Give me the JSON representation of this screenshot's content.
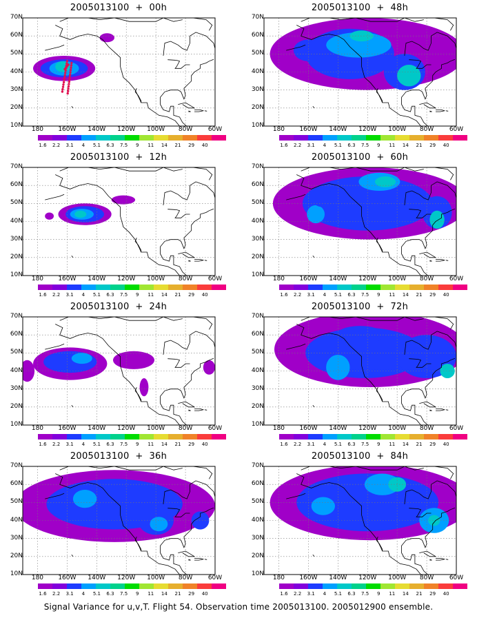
{
  "panels": [
    {
      "id": "p00",
      "title": "2005013100  +  00h"
    },
    {
      "id": "p48",
      "title": "2005013100  +  48h"
    },
    {
      "id": "p12",
      "title": "2005013100  +  12h"
    },
    {
      "id": "p60",
      "title": "2005013100  +  60h"
    },
    {
      "id": "p24",
      "title": "2005013100  +  24h"
    },
    {
      "id": "p72",
      "title": "2005013100  +  72h"
    },
    {
      "id": "p36",
      "title": "2005013100  +  36h"
    },
    {
      "id": "p84",
      "title": "2005013100  +  84h"
    }
  ],
  "lat_labels": [
    "70N",
    "60N",
    "50N",
    "40N",
    "30N",
    "20N",
    "10N"
  ],
  "lon_labels": [
    "180",
    "160W",
    "140W",
    "120W",
    "100W",
    "80W",
    "60W"
  ],
  "colorbar": {
    "labels": [
      "1.6",
      "2.2",
      "3.1",
      "4",
      "5.1",
      "6.3",
      "7.5",
      "9",
      "11",
      "14",
      "21",
      "29",
      "40"
    ],
    "colors": [
      "#a000c8",
      "#8200dc",
      "#1e3cff",
      "#00a0ff",
      "#00c8c8",
      "#00d28c",
      "#00dc00",
      "#a0e632",
      "#e6dc32",
      "#e6af2d",
      "#f08228",
      "#fa3c3c",
      "#f00082"
    ]
  },
  "footer": "Signal Variance for u,v,T. Flight 54. Observation time 2005013100. 2005012900 ensemble.",
  "flight_track_color": "#e01050"
}
